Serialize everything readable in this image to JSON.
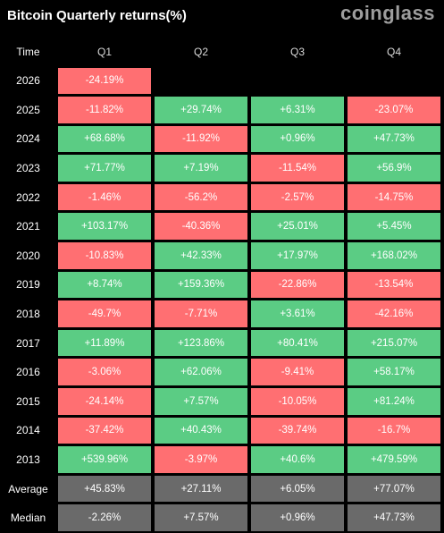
{
  "title": "Bitcoin Quarterly returns(%)",
  "logo": "coinglass",
  "colors": {
    "positive": "#5bcc84",
    "negative": "#ff6f72",
    "summary": "#6a6a6a",
    "background": "#000000"
  },
  "chart_data": {
    "type": "table",
    "title": "Bitcoin Quarterly returns(%)",
    "row_header": "Time",
    "columns": [
      "Q1",
      "Q2",
      "Q3",
      "Q4"
    ],
    "rows": [
      {
        "label": "2026",
        "values": [
          "-24.19%",
          "",
          "",
          ""
        ]
      },
      {
        "label": "2025",
        "values": [
          "-11.82%",
          "+29.74%",
          "+6.31%",
          "-23.07%"
        ]
      },
      {
        "label": "2024",
        "values": [
          "+68.68%",
          "-11.92%",
          "+0.96%",
          "+47.73%"
        ]
      },
      {
        "label": "2023",
        "values": [
          "+71.77%",
          "+7.19%",
          "-11.54%",
          "+56.9%"
        ]
      },
      {
        "label": "2022",
        "values": [
          "-1.46%",
          "-56.2%",
          "-2.57%",
          "-14.75%"
        ]
      },
      {
        "label": "2021",
        "values": [
          "+103.17%",
          "-40.36%",
          "+25.01%",
          "+5.45%"
        ]
      },
      {
        "label": "2020",
        "values": [
          "-10.83%",
          "+42.33%",
          "+17.97%",
          "+168.02%"
        ]
      },
      {
        "label": "2019",
        "values": [
          "+8.74%",
          "+159.36%",
          "-22.86%",
          "-13.54%"
        ]
      },
      {
        "label": "2018",
        "values": [
          "-49.7%",
          "-7.71%",
          "+3.61%",
          "-42.16%"
        ]
      },
      {
        "label": "2017",
        "values": [
          "+11.89%",
          "+123.86%",
          "+80.41%",
          "+215.07%"
        ]
      },
      {
        "label": "2016",
        "values": [
          "-3.06%",
          "+62.06%",
          "-9.41%",
          "+58.17%"
        ]
      },
      {
        "label": "2015",
        "values": [
          "-24.14%",
          "+7.57%",
          "-10.05%",
          "+81.24%"
        ]
      },
      {
        "label": "2014",
        "values": [
          "-37.42%",
          "+40.43%",
          "-39.74%",
          "-16.7%"
        ]
      },
      {
        "label": "2013",
        "values": [
          "+539.96%",
          "-3.97%",
          "+40.6%",
          "+479.59%"
        ]
      }
    ],
    "summary": [
      {
        "label": "Average",
        "values": [
          "+45.83%",
          "+27.11%",
          "+6.05%",
          "+77.07%"
        ]
      },
      {
        "label": "Median",
        "values": [
          "-2.26%",
          "+7.57%",
          "+0.96%",
          "+47.73%"
        ]
      }
    ]
  }
}
